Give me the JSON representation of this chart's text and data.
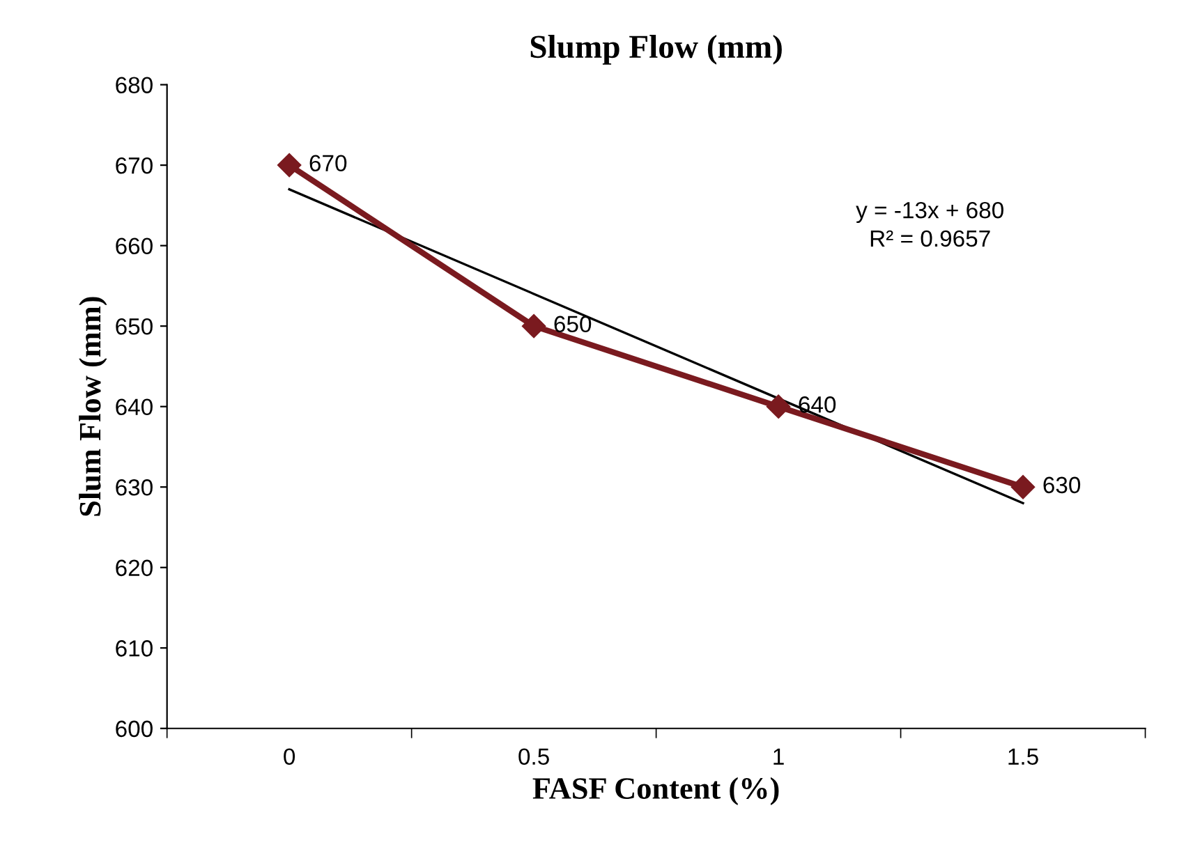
{
  "chart_data": {
    "type": "line",
    "title": "Slump Flow (mm)",
    "xlabel": "FASF Content (%)",
    "ylabel": "Slum Flow (mm)",
    "categories": [
      "0",
      "0.5",
      "1",
      "1.5"
    ],
    "series": [
      {
        "color": "#7a1a1f",
        "values": [
          670,
          650,
          640,
          630
        ],
        "marker": "diamond",
        "data_labels": true
      },
      {
        "type": "line",
        "color": "#000000",
        "values": [
          667,
          654,
          641,
          628
        ],
        "marker": "none"
      }
    ],
    "ylim": [
      600,
      680
    ],
    "yticks": [
      600,
      610,
      620,
      630,
      640,
      650,
      660,
      670,
      680
    ],
    "annotations": [
      "y = -13x + 680",
      "R² = 0.9657"
    ],
    "grid": false,
    "legend": false
  }
}
